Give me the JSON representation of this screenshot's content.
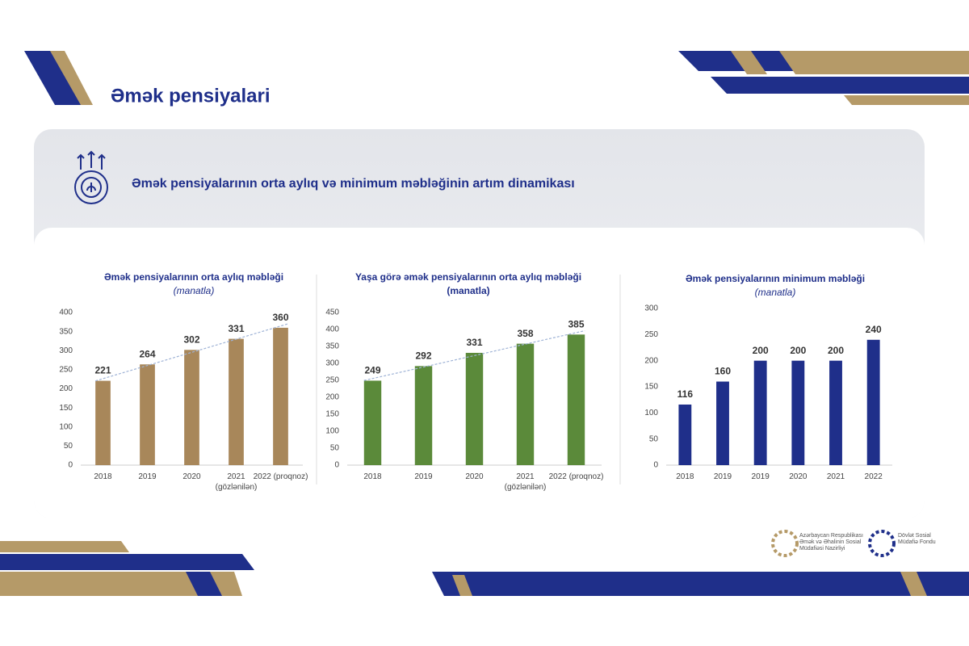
{
  "header": {
    "title": "Əmək pensiyalari"
  },
  "panel": {
    "title": "Əmək pensiyalarının orta aylıq və minimum məbləğinin artım dinamikası"
  },
  "footer": {
    "logos": [
      "Azərbaycan Respublikası Əmək və Əhalinin Sosial Müdafiəsi Nazirliyi",
      "Dövlət Sosial Müdafiə Fondu"
    ]
  },
  "chart_data": [
    {
      "type": "bar",
      "title": "Əmək pensiyalarının orta aylıq məbləği",
      "subtitle": "(manatla)",
      "categories": [
        "2018",
        "2019",
        "2020",
        "2021 (gözlənilən)",
        "2022 (proqnoz)"
      ],
      "values": [
        221,
        264,
        302,
        331,
        360
      ],
      "color": "#a8875a",
      "ylim": [
        0,
        400
      ],
      "yticks": [
        0,
        50,
        100,
        150,
        200,
        250,
        300,
        350,
        400
      ],
      "trendline": true
    },
    {
      "type": "bar",
      "title": "Yaşa görə əmək pensiyalarının orta aylıq məbləği (manatla)",
      "categories": [
        "2018",
        "2019",
        "2020",
        "2021 (gözlənilən)",
        "2022 (proqnoz)"
      ],
      "values": [
        249,
        292,
        331,
        358,
        385
      ],
      "color": "#5b8a3a",
      "ylim": [
        0,
        450
      ],
      "yticks": [
        0,
        50,
        100,
        150,
        200,
        250,
        300,
        350,
        400,
        450
      ],
      "trendline": true
    },
    {
      "type": "bar",
      "title": "Əmək pensiyalarının minimum məbləği",
      "subtitle": "(manatla)",
      "categories": [
        "2018",
        "2019",
        "2019",
        "2020",
        "2021",
        "2022"
      ],
      "values": [
        116,
        160,
        200,
        200,
        200,
        240
      ],
      "color": "#1f2f8a",
      "ylim": [
        0,
        300
      ],
      "yticks": [
        0,
        50,
        100,
        150,
        200,
        250,
        300
      ],
      "trendline": false
    }
  ]
}
